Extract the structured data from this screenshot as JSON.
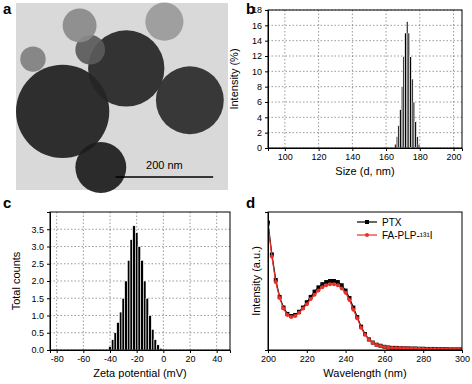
{
  "chart_data": [
    {
      "type": "image",
      "title": "a",
      "annotations": [
        "200 nm"
      ]
    },
    {
      "type": "histogram",
      "title": "b",
      "x_label": "Size (d, nm)",
      "y_label": "Intensity (%)",
      "bins": [
        165,
        166,
        167,
        168,
        169,
        170,
        171,
        172,
        173,
        174,
        175,
        176,
        177,
        178,
        179,
        180
      ],
      "values": [
        0.5,
        1.5,
        3,
        5,
        8,
        12,
        15,
        16.5,
        15,
        12,
        9,
        6,
        3.5,
        1.5,
        0.5
      ],
      "color": "#000000",
      "grid": true,
      "xlim": [
        90,
        205
      ],
      "xticks": [
        100,
        120,
        140,
        160,
        180,
        200
      ],
      "ylim": [
        0,
        18
      ],
      "yticks": [
        0,
        2,
        4,
        6,
        8,
        10,
        12,
        14,
        16,
        18
      ]
    },
    {
      "type": "histogram",
      "title": "c",
      "x_label": "Zeta potential (mV)",
      "y_label": "Total counts",
      "bins": [
        -41,
        -39,
        -37,
        -35,
        -33,
        -31,
        -29,
        -27,
        -25,
        -23,
        -21,
        -19,
        -17,
        -15,
        -13,
        -11,
        -9,
        -7,
        -5,
        -3,
        -1
      ],
      "values": [
        0.1,
        0.3,
        0.5,
        0.8,
        1.1,
        1.5,
        2.0,
        2.6,
        3.2,
        3.6,
        3.4,
        3.0,
        2.6,
        2.0,
        1.5,
        1.0,
        0.6,
        0.3,
        0.15,
        0.05
      ],
      "color": "#000000",
      "grid": true,
      "xlim": [
        -85,
        50
      ],
      "xticks": [
        -80,
        -60,
        -40,
        -20,
        0,
        20,
        40
      ],
      "ylim": [
        0,
        4
      ],
      "yticks": [
        {
          "value": 0,
          "label": "0.0"
        },
        0.5,
        {
          "value": 1,
          "label": "1.0"
        },
        1.5,
        {
          "value": 2,
          "label": "2.0"
        },
        2.5,
        {
          "value": 3,
          "label": "3.0"
        },
        3.5
      ]
    },
    {
      "type": "line",
      "title": "d",
      "x_label": "Wavelength (nm)",
      "y_label": "Intensity (a.u.)",
      "tick_labels": "x",
      "legend": "upper right",
      "x": [
        200,
        202,
        204,
        206,
        208,
        210,
        212,
        214,
        216,
        218,
        220,
        222,
        224,
        226,
        228,
        230,
        232,
        234,
        236,
        238,
        240,
        242,
        244,
        246,
        248,
        250,
        252,
        254,
        256,
        258,
        260,
        262,
        264,
        266,
        268,
        270,
        272,
        274,
        276,
        278,
        280,
        282,
        284,
        286,
        288,
        290,
        292,
        294,
        296,
        298,
        300
      ],
      "xlim": [
        200,
        300
      ],
      "xticks": [
        200,
        220,
        240,
        260,
        280,
        300
      ],
      "ylim": [
        0,
        0.65
      ],
      "series": [
        {
          "name": "PTX",
          "color": "#000000",
          "marker": "square",
          "values": [
            0.6,
            0.45,
            0.33,
            0.25,
            0.2,
            0.17,
            0.16,
            0.165,
            0.18,
            0.2,
            0.225,
            0.25,
            0.275,
            0.295,
            0.31,
            0.32,
            0.325,
            0.325,
            0.32,
            0.305,
            0.28,
            0.245,
            0.2,
            0.155,
            0.11,
            0.075,
            0.05,
            0.035,
            0.025,
            0.02,
            0.015,
            0.012,
            0.01,
            0.01,
            0.009,
            0.008,
            0.008,
            0.007,
            0.007,
            0.006,
            0.006,
            0.005,
            0.005,
            0.005,
            0.004,
            0.004,
            0.004,
            0.003,
            0.003,
            0.003,
            0.003
          ]
        },
        {
          "name": "FA-PLP-¹³¹I",
          "color": "#e8312a",
          "marker": "circle",
          "values": [
            0.59,
            0.44,
            0.32,
            0.245,
            0.195,
            0.165,
            0.155,
            0.16,
            0.175,
            0.195,
            0.215,
            0.24,
            0.26,
            0.28,
            0.295,
            0.305,
            0.31,
            0.31,
            0.305,
            0.29,
            0.27,
            0.235,
            0.19,
            0.15,
            0.105,
            0.072,
            0.048,
            0.034,
            0.024,
            0.019,
            0.014,
            0.012,
            0.01,
            0.01,
            0.009,
            0.008,
            0.008,
            0.007,
            0.007,
            0.006,
            0.006,
            0.005,
            0.005,
            0.005,
            0.004,
            0.004,
            0.004,
            0.003,
            0.003,
            0.003,
            0.003
          ]
        }
      ]
    }
  ]
}
